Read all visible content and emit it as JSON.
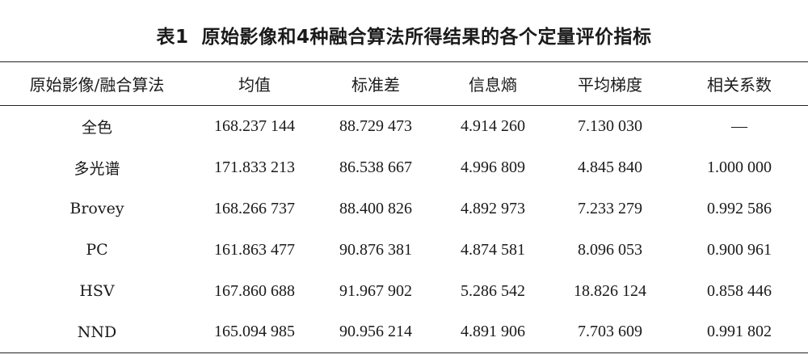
{
  "caption": {
    "label": "表1",
    "text": "原始影像和4种融合算法所得结果的各个定量评价指标"
  },
  "table": {
    "headers": [
      "原始影像/融合算法",
      "均值",
      "标准差",
      "信息熵",
      "平均梯度",
      "相关系数"
    ],
    "rows": [
      [
        "全色",
        "168.237 144",
        "88.729 473",
        "4.914 260",
        "7.130 030",
        "—"
      ],
      [
        "多光谱",
        "171.833 213",
        "86.538 667",
        "4.996 809",
        "4.845 840",
        "1.000 000"
      ],
      [
        "Brovey",
        "168.266 737",
        "88.400 826",
        "4.892 973",
        "7.233 279",
        "0.992 586"
      ],
      [
        "PC",
        "161.863 477",
        "90.876 381",
        "4.874 581",
        "8.096 053",
        "0.900 961"
      ],
      [
        "HSV",
        "167.860 688",
        "91.967 902",
        "5.286 542",
        "18.826 124",
        "0.858 446"
      ],
      [
        "NND",
        "165.094 985",
        "90.956 214",
        "4.891 906",
        "7.703 609",
        "0.991 802"
      ]
    ]
  }
}
